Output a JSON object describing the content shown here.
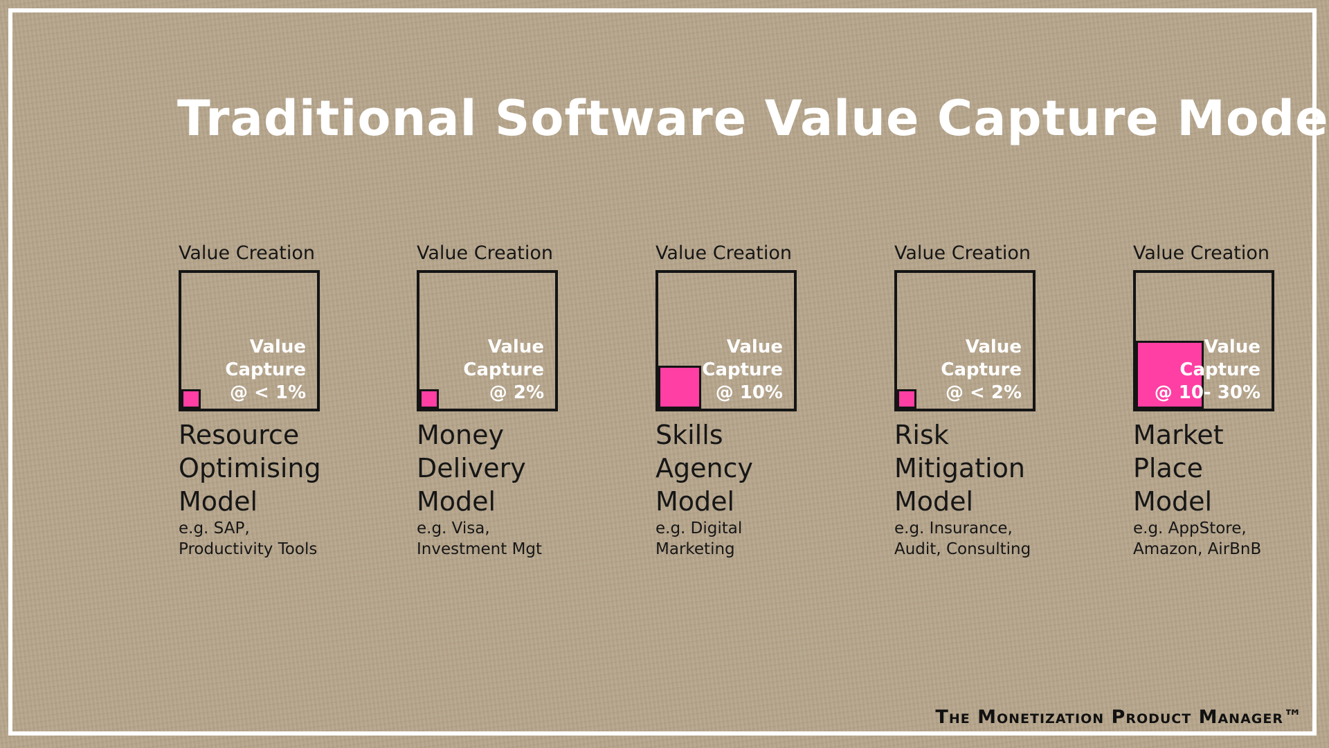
{
  "title": "Traditional Software Value Capture Models",
  "footer": "The Monetization Product Manager™",
  "colors": {
    "capture_fill": "#ff3fa3",
    "background": "#b5a48a",
    "text_light": "#ffffff",
    "text_dark": "#161616"
  },
  "models": [
    {
      "value_creation_label": "Value Creation",
      "capture_lines": [
        "Value",
        "Capture",
        "@ < 1%"
      ],
      "capture_share": 0.01,
      "name_lines": [
        "Resource",
        "Optimising",
        "Model"
      ],
      "example_lines": [
        "e.g. SAP,",
        "Productivity Tools"
      ]
    },
    {
      "value_creation_label": "Value Creation",
      "capture_lines": [
        "Value",
        "Capture",
        "@ 2%"
      ],
      "capture_share": 0.02,
      "name_lines": [
        "Money",
        "Delivery",
        "Model"
      ],
      "example_lines": [
        "e.g. Visa,",
        "Investment Mgt"
      ]
    },
    {
      "value_creation_label": "Value Creation",
      "capture_lines": [
        "Value",
        "Capture",
        "@ 10%"
      ],
      "capture_share": 0.1,
      "name_lines": [
        "Skills",
        "Agency",
        "Model"
      ],
      "example_lines": [
        "e.g. Digital",
        "Marketing"
      ]
    },
    {
      "value_creation_label": "Value Creation",
      "capture_lines": [
        "Value",
        "Capture",
        "@  < 2%"
      ],
      "capture_share": 0.02,
      "name_lines": [
        "Risk",
        "Mitigation",
        "Model"
      ],
      "example_lines": [
        "e.g. Insurance,",
        "Audit, Consulting"
      ]
    },
    {
      "value_creation_label": "Value Creation",
      "capture_lines": [
        "Value",
        "Capture",
        "@ 10- 30%"
      ],
      "capture_share": 0.25,
      "name_lines": [
        "Market",
        "Place",
        "Model"
      ],
      "example_lines": [
        "e.g. AppStore,",
        "Amazon, AirBnB"
      ]
    }
  ]
}
